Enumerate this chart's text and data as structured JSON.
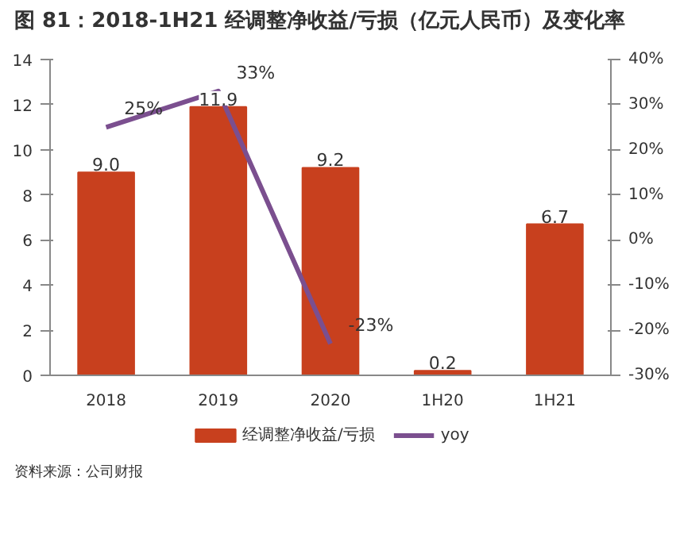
{
  "chart_data": {
    "type": "bar",
    "title": "图 81：2018-1H21 经调整净收益/亏损（亿元人民币）及变化率",
    "categories": [
      "2018",
      "2019",
      "2020",
      "1H20",
      "1H21"
    ],
    "series": [
      {
        "name": "经调整净收益/亏损",
        "color": "#c8401e",
        "values": [
          9.0,
          11.9,
          9.2,
          0.2,
          6.7
        ],
        "value_labels": [
          "9.0",
          "11.9",
          "9.2",
          "0.2",
          "6.7"
        ]
      },
      {
        "name": "yoy",
        "type": "line",
        "axis": "y2",
        "color": "#7b4f8f",
        "values": [
          25,
          33,
          -23,
          null,
          null
        ],
        "value_labels": [
          "25%",
          "33%",
          "-23%",
          null,
          null
        ]
      }
    ],
    "ylim": [
      0,
      14
    ],
    "yticks": [
      0,
      2,
      4,
      6,
      8,
      10,
      12,
      14
    ],
    "y2lim": [
      -30,
      40
    ],
    "y2ticks": [
      {
        "value": -30,
        "label": "-30%"
      },
      {
        "value": -20,
        "label": "-20%"
      },
      {
        "value": -10,
        "label": "-10%"
      },
      {
        "value": 0,
        "label": "0%"
      },
      {
        "value": 10,
        "label": "10%"
      },
      {
        "value": 20,
        "label": "20%"
      },
      {
        "value": 30,
        "label": "30%"
      },
      {
        "value": 40,
        "label": "40%"
      }
    ],
    "grid": false,
    "legend": "bottom",
    "marker": "none",
    "line_style": "solid",
    "annotations": [
      "资料来源：公司财报"
    ]
  }
}
